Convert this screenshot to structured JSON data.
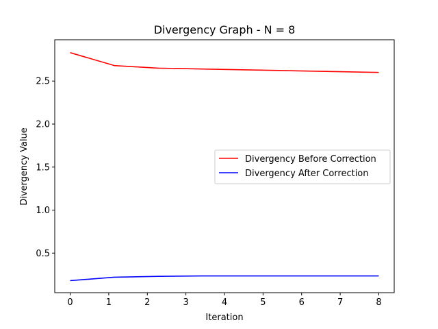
{
  "chart_data": {
    "type": "line",
    "title": "Divergency Graph - N =  8",
    "xlabel": "Iteration",
    "ylabel": "Divergency Value",
    "xlim": [
      -0.4,
      8.4
    ],
    "ylim": [
      0.04,
      2.98
    ],
    "xticks": [
      0,
      1,
      2,
      3,
      4,
      5,
      6,
      7,
      8
    ],
    "xtick_labels": [
      "0",
      "1",
      "2",
      "3",
      "4",
      "5",
      "6",
      "7",
      "8"
    ],
    "yticks": [
      0.5,
      1.0,
      1.5,
      2.0,
      2.5
    ],
    "ytick_labels": [
      "0.5",
      "1.0",
      "1.5",
      "2.0",
      "2.5"
    ],
    "grid": false,
    "legend_position": "center-right",
    "series": [
      {
        "name": "Divergency Before Correction",
        "color": "#ff0000",
        "x": [
          0,
          1.143,
          2.286,
          3.429,
          4.571,
          5.714,
          6.857,
          8
        ],
        "y": [
          2.83,
          2.68,
          2.65,
          2.64,
          2.63,
          2.62,
          2.61,
          2.6
        ]
      },
      {
        "name": "Divergency After Correction",
        "color": "#0000ff",
        "x": [
          0,
          1.143,
          2.286,
          3.429,
          4.571,
          5.714,
          6.857,
          8
        ],
        "y": [
          0.18,
          0.22,
          0.23,
          0.235,
          0.235,
          0.235,
          0.235,
          0.235
        ]
      }
    ]
  }
}
